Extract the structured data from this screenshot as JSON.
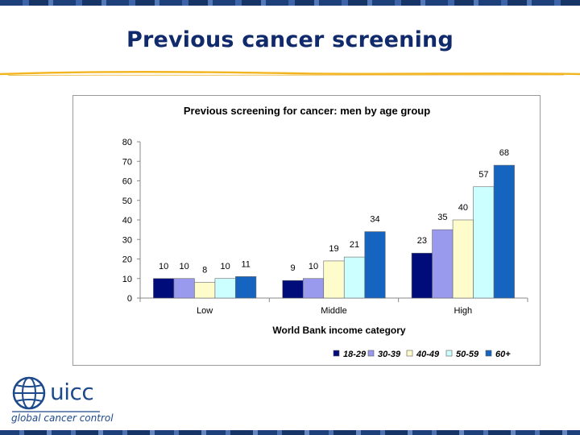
{
  "slide": {
    "title": "Previous cancer screening",
    "logo_text": "uicc",
    "logo_tagline": "global cancer control"
  },
  "colors": {
    "title": "#102a6b",
    "accent_rule": "#f2b51f",
    "band": "#1d3f7a"
  },
  "chart_data": {
    "type": "bar",
    "title": "Previous screening for cancer: men by age group",
    "xlabel": "World Bank income category",
    "ylabel": "",
    "ylim": [
      0,
      80
    ],
    "yticks": [
      0,
      10,
      20,
      30,
      40,
      50,
      60,
      70,
      80
    ],
    "categories": [
      "Low",
      "Middle",
      "High"
    ],
    "grid": false,
    "legend_position": "bottom-right",
    "series": [
      {
        "name": "18-29",
        "color": "#000c7a",
        "values": [
          10,
          9,
          23
        ]
      },
      {
        "name": "30-39",
        "color": "#9999ee",
        "values": [
          10,
          10,
          35
        ]
      },
      {
        "name": "40-49",
        "color": "#fffccc",
        "values": [
          8,
          19,
          40
        ]
      },
      {
        "name": "50-59",
        "color": "#ccffff",
        "values": [
          10,
          21,
          57
        ]
      },
      {
        "name": "60+",
        "color": "#1565c0",
        "values": [
          11,
          34,
          68
        ]
      }
    ]
  }
}
